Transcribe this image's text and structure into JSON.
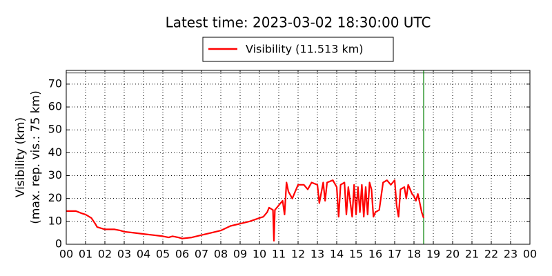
{
  "chart_data": {
    "type": "line",
    "title": "Latest time: 2023-03-02 18:30:00 UTC",
    "ylabel": [
      "Visibility (km)",
      "(max. rep. vis.: 75 km)"
    ],
    "xlim": [
      0,
      24
    ],
    "ylim": [
      0,
      76
    ],
    "xticks": [
      {
        "value": 0,
        "label": "00"
      },
      {
        "value": 1,
        "label": "01"
      },
      {
        "value": 2,
        "label": "02"
      },
      {
        "value": 3,
        "label": "03"
      },
      {
        "value": 4,
        "label": "04"
      },
      {
        "value": 5,
        "label": "05"
      },
      {
        "value": 6,
        "label": "06"
      },
      {
        "value": 7,
        "label": "07"
      },
      {
        "value": 8,
        "label": "08"
      },
      {
        "value": 9,
        "label": "09"
      },
      {
        "value": 10,
        "label": "10"
      },
      {
        "value": 11,
        "label": "11"
      },
      {
        "value": 12,
        "label": "12"
      },
      {
        "value": 13,
        "label": "13"
      },
      {
        "value": 14,
        "label": "14"
      },
      {
        "value": 15,
        "label": "15"
      },
      {
        "value": 16,
        "label": "16"
      },
      {
        "value": 17,
        "label": "17"
      },
      {
        "value": 18,
        "label": "18"
      },
      {
        "value": 19,
        "label": "19"
      },
      {
        "value": 20,
        "label": "20"
      },
      {
        "value": 21,
        "label": "21"
      },
      {
        "value": 22,
        "label": "22"
      },
      {
        "value": 23,
        "label": "23"
      },
      {
        "value": 24,
        "label": "00"
      }
    ],
    "yticks": [
      0,
      10,
      20,
      30,
      40,
      50,
      60,
      70
    ],
    "grid": true,
    "max_visibility": 75,
    "max_visibility_color": "#999999",
    "current_time": 18.5,
    "current_time_color": "#008000",
    "series": [
      {
        "name": "Visibility (11.513 km)",
        "color": "#ff0000",
        "x": [
          0,
          0.5,
          0.8,
          1,
          1.3,
          1.5,
          1.6,
          2,
          2.5,
          2.8,
          3,
          3.5,
          4,
          4.5,
          5,
          5.3,
          5.5,
          5.8,
          6,
          6.5,
          7,
          7.5,
          8,
          8.5,
          9,
          9.5,
          10,
          10.2,
          10.4,
          10.5,
          10.7,
          10.75,
          10.8,
          11,
          11.2,
          11.3,
          11.4,
          11.5,
          11.7,
          12,
          12.3,
          12.5,
          12.7,
          13,
          13.1,
          13.3,
          13.4,
          13.5,
          13.8,
          14,
          14.1,
          14.2,
          14.4,
          14.5,
          14.6,
          14.8,
          14.9,
          15,
          15.1,
          15.2,
          15.3,
          15.4,
          15.5,
          15.6,
          15.7,
          15.8,
          15.9,
          16,
          16.2,
          16.4,
          16.6,
          16.8,
          17,
          17.1,
          17.2,
          17.3,
          17.5,
          17.6,
          17.7,
          17.9,
          18,
          18.1,
          18.2,
          18.3,
          18.4,
          18.5
        ],
        "values": [
          14.5,
          14.5,
          13.5,
          13,
          11.5,
          9,
          7.5,
          6.5,
          6.5,
          6,
          5.5,
          5,
          4.5,
          4,
          3.5,
          3,
          3.5,
          3,
          2.5,
          3,
          4,
          5,
          6,
          8,
          9,
          10,
          11.5,
          12,
          14,
          16,
          15,
          1.5,
          15,
          17,
          19,
          13,
          27,
          23,
          20,
          26,
          26,
          24,
          27,
          26,
          18,
          27,
          19,
          27,
          28,
          25,
          12,
          26,
          27,
          13,
          25,
          12,
          26,
          13,
          25,
          14,
          26,
          12,
          25,
          13,
          27,
          24,
          12,
          14,
          15,
          27,
          28,
          26,
          28,
          17,
          12,
          24,
          25,
          20,
          26,
          22,
          21,
          19,
          22,
          18,
          14,
          11.5
        ]
      }
    ]
  }
}
